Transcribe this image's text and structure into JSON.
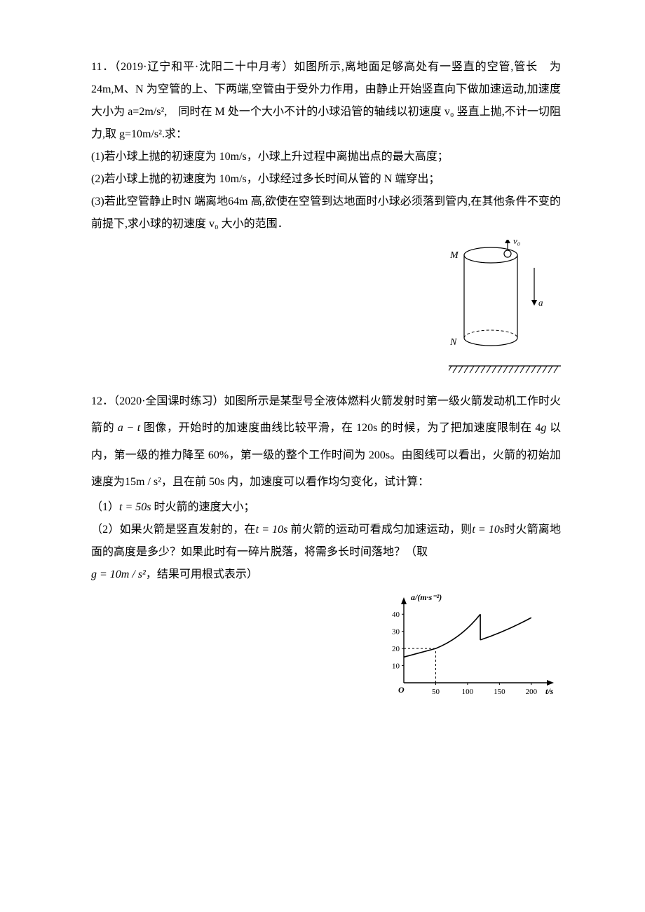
{
  "q11": {
    "number": "11．",
    "source": "（2019·辽宁和平·沈阳二十中月考）",
    "body": "如图所示,离地面足够高处有一竖直的空管,管长　为 24m,M、N 为空管的上、下两端,空管由于受外力作用，由静止开始竖直向下做加速运动,加速度大小为 a=2m/s²,　同时在 M 处一个大小不计的小球沿管的轴线以初速度 v₀ 竖直上抛,不计一切阻力,取 g=10m/s².求：",
    "p1": "(1)若小球上抛的初速度为 10m/s，小球上升过程中离抛出点的最大高度；",
    "p2": "(2)若小球上抛的初速度为 10m/s，小球经过多长时间从管的 N 端穿出；",
    "p3": "(3)若此空管静止时N 端离地64m 高,欲使在空管到达地面时小球必须落到管内,在其他条件不变的前提下,求小球的初速度 v₀ 大小的范围．",
    "figure": {
      "label_M": "M",
      "label_N": "N",
      "label_v0": "v₀",
      "label_a": "a",
      "cylinder_stroke": "#000000",
      "hatch_stroke": "#000000"
    }
  },
  "q12": {
    "number": "12．",
    "source": "（2020·全国课时练习）",
    "body_prefix": "如图所示是某型号全液体燃料火箭发射时第一级火箭发动机工作时火箭的 ",
    "at": "a − t",
    "body_mid1": " 图像，开始时的加速度曲线比较平滑，在 120s 的时候，为了把加速度限制在 4",
    "g": "g",
    "body_mid2": " 以内，第一级的推力降至 60%，第一级的整个工作时间为 200s。由图线可以看出，火箭的初始加速度为",
    "a0": "15m / s²",
    "body_mid3": "，且在前 50s 内，加速度可以看作均匀变化，试计算：",
    "p1_prefix": "（1）",
    "p1_eq": "t = 50s",
    "p1_suffix": " 时火箭的速度大小；",
    "p2_prefix": "（2）如果火箭是竖直发射的，在",
    "p2_eq1": "t = 10s",
    "p2_mid": " 前火箭的运动可看成匀加速运动，则",
    "p2_eq2": "t = 10s",
    "p2_suffix": "时火箭离地面的高度是多少？如果此时有一碎片脱落，将需多长时间落地？（取",
    "p3_eq": "g = 10m / s²",
    "p3_suffix": "，结果可用根式表示）",
    "chart": {
      "type": "line",
      "x_values": [
        0,
        50,
        100,
        120,
        120,
        150,
        200
      ],
      "y_values": [
        15,
        20,
        30,
        40,
        25,
        30,
        38
      ],
      "x_ticks": [
        50,
        100,
        150,
        200
      ],
      "y_ticks": [
        10,
        20,
        30,
        40
      ],
      "dashed_x": 50,
      "dashed_y": 20,
      "ylabel": "a/(m·s⁻²)",
      "xlabel": "t/s",
      "origin": "O",
      "axis_color": "#000000",
      "line_color": "#000000",
      "dash_color": "#000000",
      "tick_fontsize": 11,
      "label_fontsize": 12,
      "xlim": [
        0,
        220
      ],
      "ylim": [
        0,
        45
      ]
    }
  }
}
